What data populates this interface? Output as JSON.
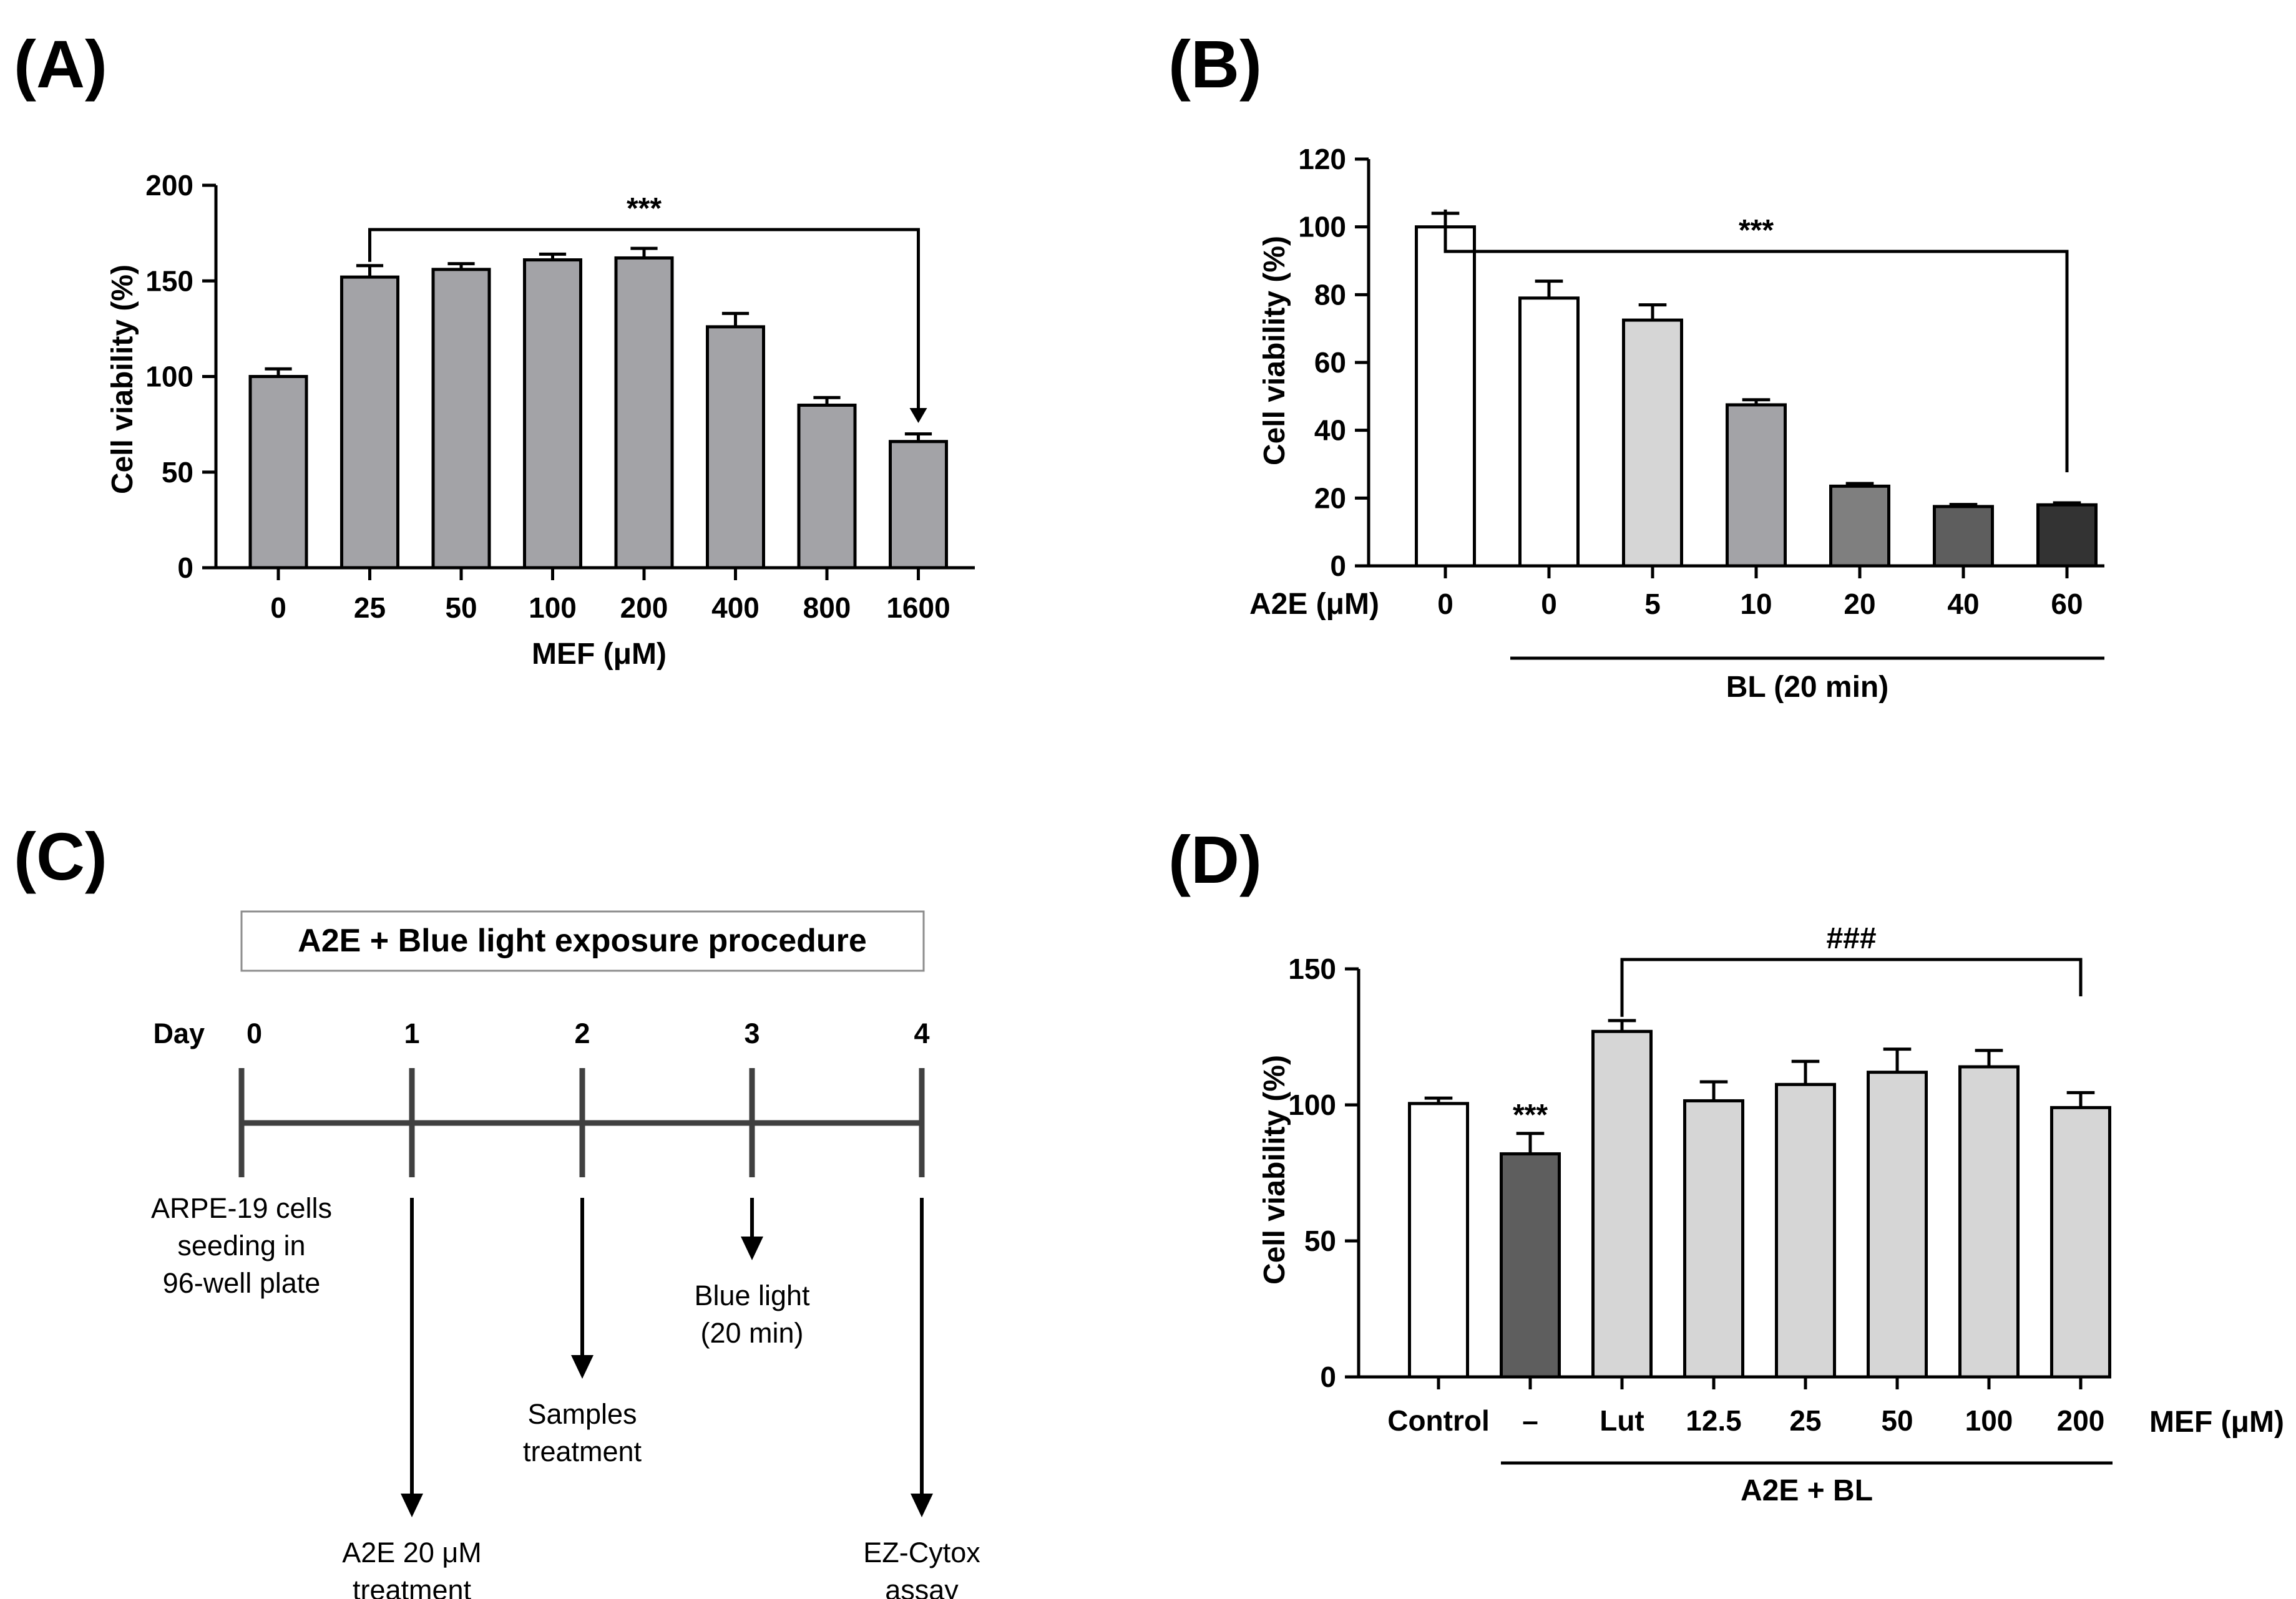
{
  "chart_data": [
    {
      "panel": "(A)",
      "type": "bar",
      "categories": [
        "0",
        "25",
        "50",
        "100",
        "200",
        "400",
        "800",
        "1600"
      ],
      "values": [
        100,
        152,
        156,
        161,
        162,
        126,
        85,
        66
      ],
      "errors": [
        4,
        6,
        3,
        3,
        5,
        7,
        4,
        4
      ],
      "colors": [
        "#a3a3a7",
        "#a3a3a7",
        "#a3a3a7",
        "#a3a3a7",
        "#a3a3a7",
        "#a3a3a7",
        "#a3a3a7",
        "#a3a3a7"
      ],
      "xlabel": "MEF (μM)",
      "ylabel": "Cell viability (%)",
      "ylim": [
        0,
        200
      ],
      "yticks": [
        "0",
        "50",
        "100",
        "150",
        "200"
      ],
      "significance": {
        "label": "***",
        "from": "25",
        "to": "1600"
      }
    },
    {
      "panel": "(B)",
      "type": "bar",
      "categories": [
        "0",
        "0",
        "5",
        "10",
        "20",
        "40",
        "60"
      ],
      "values": [
        100,
        79,
        72.5,
        47.5,
        23.5,
        17.5,
        18
      ],
      "errors": [
        4,
        5,
        4.5,
        1.5,
        0.8,
        0.6,
        0.6
      ],
      "colors": [
        "#ffffff",
        "#ffffff",
        "#d6d6d6",
        "#a3a3a7",
        "#7f7f7f",
        "#5e5e5e",
        "#333333"
      ],
      "row_label": "A2E (μM)",
      "group_label": "BL (20 min)",
      "ylabel": "Cell viability (%)",
      "ylim": [
        0,
        120
      ],
      "yticks": [
        "0",
        "20",
        "40",
        "60",
        "80",
        "100",
        "120"
      ],
      "significance": {
        "label": "***",
        "from": "0",
        "to": "60"
      }
    },
    {
      "panel": "(D)",
      "type": "bar",
      "categories": [
        "Control",
        "–",
        "Lut",
        "12.5",
        "25",
        "50",
        "100",
        "200"
      ],
      "values": [
        100.5,
        82,
        127,
        101.5,
        107.5,
        112,
        114,
        99
      ],
      "errors": [
        2,
        7.5,
        4,
        7,
        8.5,
        8.5,
        6,
        5.5
      ],
      "colors": [
        "#ffffff",
        "#5e5e5e",
        "#d6d6d6",
        "#d6d6d6",
        "#d6d6d6",
        "#d6d6d6",
        "#d6d6d6",
        "#d6d6d6"
      ],
      "xlabel": "MEF (μM)",
      "group_label": "A2E + BL",
      "ylabel": "Cell viability (%)",
      "ylim": [
        0,
        150
      ],
      "yticks": [
        "0",
        "50",
        "100",
        "150"
      ],
      "bar_annotation": {
        "label": "***",
        "category": "–"
      },
      "significance": {
        "label": "###",
        "from": "Lut",
        "to": "200"
      }
    }
  ],
  "procedure": {
    "panel": "(C)",
    "title": "A2E + Blue light exposure procedure",
    "day_prefix": "Day",
    "days": [
      "0",
      "1",
      "2",
      "3",
      "4"
    ],
    "events": [
      {
        "day": "0",
        "lines": [
          "ARPE-19 cells",
          "seeding in",
          "96-well plate"
        ]
      },
      {
        "day": "1",
        "lines": [
          "A2E 20 μM",
          "treatment"
        ]
      },
      {
        "day": "2",
        "lines": [
          "Samples",
          "treatment"
        ]
      },
      {
        "day": "3",
        "lines": [
          "Blue light",
          "(20 min)"
        ]
      },
      {
        "day": "4",
        "lines": [
          "EZ-Cytox",
          "assay"
        ]
      }
    ]
  }
}
